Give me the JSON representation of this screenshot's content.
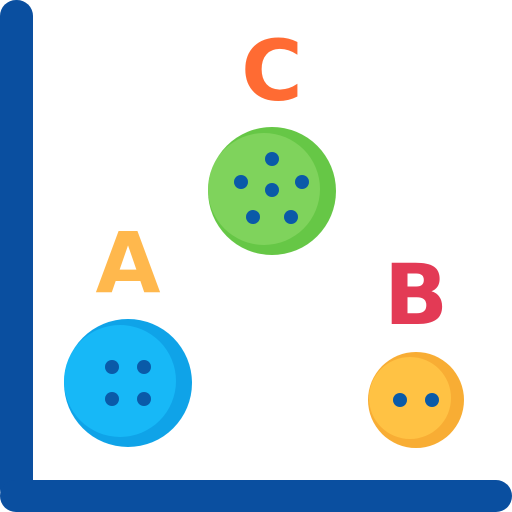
{
  "palette": {
    "axis": "#0a4fa0",
    "background": "#ffffff"
  },
  "items": [
    {
      "letter": "A",
      "holes": 4,
      "letter_color": "#ffb84d",
      "button_color": "#17b8f7",
      "button_shade": "#0fa3e8",
      "hole_color": "#0a5aa8"
    },
    {
      "letter": "B",
      "holes": 2,
      "letter_color": "#e33a55",
      "button_color": "#ffc244",
      "button_shade": "#f8ad34",
      "hole_color": "#0a5aa8"
    },
    {
      "letter": "C",
      "holes": 6,
      "letter_color": "#ff6b33",
      "button_color": "#7fd35c",
      "button_shade": "#66c746",
      "hole_color": "#0a5aa8"
    }
  ]
}
